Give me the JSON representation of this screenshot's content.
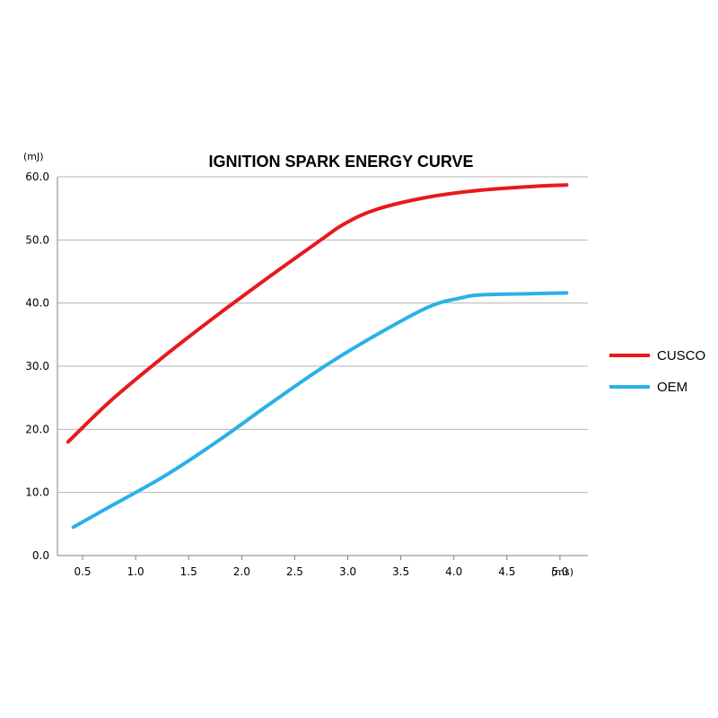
{
  "chart_data": {
    "type": "line",
    "title": "IGNITION SPARK ENERGY CURVE",
    "ylabel": "(mJ)",
    "xlabel": "(ms)",
    "xlim": [
      0.5,
      5.5
    ],
    "ylim": [
      0,
      60
    ],
    "x_ticks": [
      "0.5",
      "1.0",
      "1.5",
      "2.0",
      "2.5",
      "3.0",
      "3.5",
      "4.0",
      "4.5",
      "5.0"
    ],
    "y_ticks": [
      "0.0",
      "10.0",
      "20.0",
      "30.0",
      "40.0",
      "50.0",
      "60.0"
    ],
    "grid": true,
    "legend_position": "right",
    "series": [
      {
        "name": "CUSCO",
        "color": "#e8191e",
        "x": [
          0.6,
          1.0,
          1.5,
          2.0,
          2.5,
          3.0,
          3.2,
          3.5,
          4.0,
          4.5,
          5.0,
          5.3
        ],
        "y": [
          18.0,
          24.5,
          31.5,
          38.0,
          44.2,
          50.2,
          52.5,
          54.8,
          56.8,
          57.9,
          58.5,
          58.7
        ]
      },
      {
        "name": "OEM",
        "color": "#29b1e8",
        "x": [
          0.65,
          1.0,
          1.5,
          2.0,
          2.5,
          3.0,
          3.5,
          4.0,
          4.3,
          4.5,
          5.0,
          5.3
        ],
        "y": [
          4.5,
          7.8,
          12.5,
          18.0,
          24.0,
          29.8,
          34.9,
          39.4,
          40.8,
          41.3,
          41.5,
          41.6
        ]
      }
    ]
  }
}
